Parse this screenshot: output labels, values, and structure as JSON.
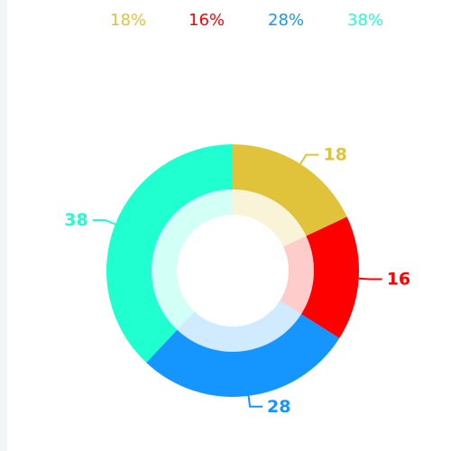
{
  "chart_data": {
    "type": "pie",
    "variant": "donut",
    "categories": [
      "18%",
      "16%",
      "28%",
      "38%"
    ],
    "values": [
      18,
      16,
      28,
      38
    ],
    "slice_labels": [
      "18",
      "16",
      "28",
      "38"
    ],
    "colors": [
      "#e0c33a",
      "#ff0000",
      "#1596ff",
      "#20ffd0"
    ],
    "legend_position": "top",
    "grid": false
  }
}
